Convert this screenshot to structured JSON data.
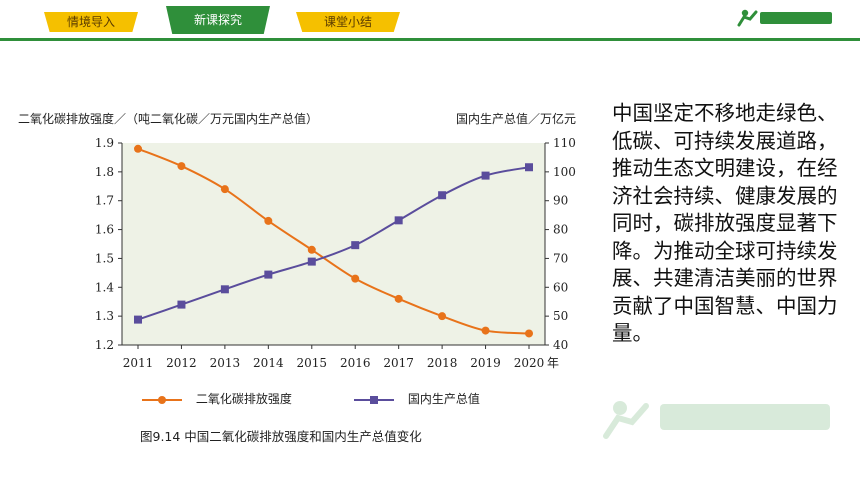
{
  "tabs": [
    {
      "label": "情境导入",
      "active": false
    },
    {
      "label": "新课探究",
      "active": true
    },
    {
      "label": "课堂小结",
      "active": false
    }
  ],
  "colors": {
    "tab": "#f5c000",
    "tab_active": "#2f8f3a",
    "series1": "#e8731a",
    "series2": "#5a4d9c"
  },
  "chart_title_left": "二氧化碳排放强度／（吨二氧化碳／万元国内生产总值）",
  "chart_title_right": "国内生产总值／万亿元",
  "x_unit": "年",
  "legend": {
    "series1": "二氧化碳排放强度",
    "series2": "国内生产总值"
  },
  "caption": "图9.14  中国二氧化碳排放强度和国内生产总值变化",
  "paragraph": "中国坚定不移地走绿色、低碳、可持续发展道路，推动生态文明建设，在经济社会持续、健康发展的同时，碳排放强度显著下降。为推动全球可持续发展、共建清洁美丽的世界贡献了中国智慧、中国力量。",
  "chart_data": {
    "type": "line",
    "x": [
      2011,
      2012,
      2013,
      2014,
      2015,
      2016,
      2017,
      2018,
      2019,
      2020
    ],
    "series": [
      {
        "name": "二氧化碳排放强度",
        "axis": "left",
        "values": [
          1.88,
          1.82,
          1.74,
          1.63,
          1.53,
          1.43,
          1.36,
          1.3,
          1.25,
          1.24
        ]
      },
      {
        "name": "国内生产总值",
        "axis": "right",
        "values": [
          48.8,
          54,
          59.3,
          64.4,
          68.9,
          74.6,
          83.2,
          91.9,
          98.7,
          101.6
        ]
      }
    ],
    "ylim_left": [
      1.2,
      1.9
    ],
    "yticks_left": [
      "1.2",
      "1.3",
      "1.4",
      "1.5",
      "1.6",
      "1.7",
      "1.8",
      "1.9"
    ],
    "ylim_right": [
      40,
      110
    ],
    "yticks_right": [
      "40",
      "50",
      "60",
      "70",
      "80",
      "90",
      "100",
      "110"
    ],
    "xticks": [
      "2011",
      "2012",
      "2013",
      "2014",
      "2015",
      "2016",
      "2017",
      "2018",
      "2019",
      "2020"
    ],
    "grid": false,
    "legend_position": "bottom"
  }
}
